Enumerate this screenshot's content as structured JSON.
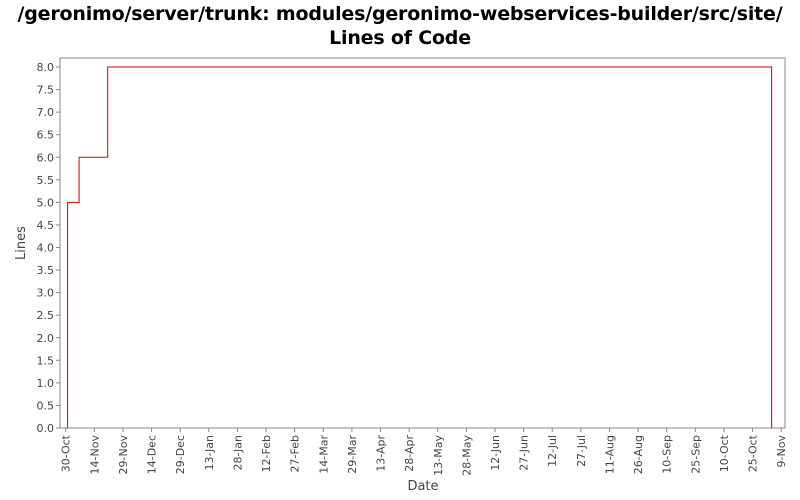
{
  "chart_data": {
    "type": "line",
    "step": true,
    "title": "/geronimo/server/trunk: modules/geronimo-webservices-builder/src/site/",
    "subtitle": "Lines of Code",
    "xlabel": "Date",
    "ylabel": "Lines",
    "ylim": [
      0,
      8.2
    ],
    "yticks": [
      0.0,
      0.5,
      1.0,
      1.5,
      2.0,
      2.5,
      3.0,
      3.5,
      4.0,
      4.5,
      5.0,
      5.5,
      6.0,
      6.5,
      7.0,
      7.5,
      8.0
    ],
    "ytick_labels": [
      "0.0",
      "0.5",
      "1.0",
      "1.5",
      "2.0",
      "2.5",
      "3.0",
      "3.5",
      "4.0",
      "4.5",
      "5.0",
      "5.5",
      "6.0",
      "6.5",
      "7.0",
      "7.5",
      "8.0"
    ],
    "xtick_labels": [
      "30-Oct",
      "14-Nov",
      "29-Nov",
      "14-Dec",
      "29-Dec",
      "13-Jan",
      "28-Jan",
      "12-Feb",
      "27-Feb",
      "14-Mar",
      "29-Mar",
      "13-Apr",
      "28-Apr",
      "13-May",
      "28-May",
      "12-Jun",
      "27-Jun",
      "12-Jul",
      "27-Jul",
      "11-Aug",
      "26-Aug",
      "10-Sep",
      "25-Sep",
      "10-Oct",
      "25-Oct",
      "9-Nov"
    ],
    "xtick_day": [
      0,
      15,
      30,
      45,
      60,
      75,
      90,
      105,
      120,
      135,
      150,
      165,
      180,
      195,
      210,
      225,
      240,
      255,
      270,
      285,
      300,
      315,
      330,
      345,
      360,
      375
    ],
    "xlim_day": [
      -3,
      377
    ],
    "grid": false,
    "legend": "none",
    "series": [
      {
        "x_day": [
          1,
          7,
          22,
          370,
          370
        ],
        "values": [
          5,
          6,
          8,
          8,
          0
        ],
        "color": "#cc0000"
      }
    ],
    "colors": {
      "line": "#cc0000",
      "axis": "#888888",
      "text": "#444444"
    }
  }
}
